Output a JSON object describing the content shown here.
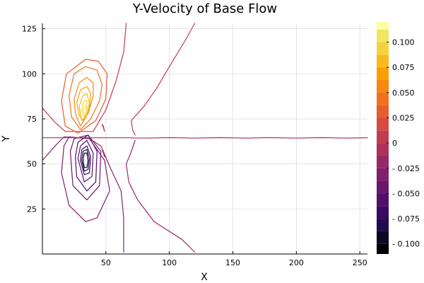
{
  "chart_data": {
    "type": "contour",
    "title": "Y-Velocity of Base Flow",
    "xlabel": "X",
    "ylabel": "Y",
    "x_ticks": [
      50,
      100,
      150,
      200,
      250
    ],
    "y_ticks": [
      25,
      50,
      75,
      100,
      125
    ],
    "xlim": [
      0,
      256
    ],
    "ylim": [
      0,
      128
    ],
    "grid": true,
    "legend": "right-colorbar",
    "colorbar": {
      "range": [
        -0.11,
        0.12
      ],
      "tick_values": [
        -0.1,
        -0.075,
        -0.05,
        -0.025,
        0,
        0.025,
        0.05,
        0.075,
        0.1
      ],
      "tick_labels": [
        "- 0.100",
        "- 0.075",
        "- 0.050",
        "- 0.025",
        "0",
        "0.025",
        "0.050",
        "0.075",
        "0.100"
      ],
      "bands": [
        {
          "from": -0.11,
          "to": -0.1,
          "color": "#000004"
        },
        {
          "from": -0.1,
          "to": -0.0875,
          "color": "#0c0826"
        },
        {
          "from": -0.0875,
          "to": -0.075,
          "color": "#230b4d"
        },
        {
          "from": -0.075,
          "to": -0.0625,
          "color": "#3a0963"
        },
        {
          "from": -0.0625,
          "to": -0.05,
          "color": "#520e6d"
        },
        {
          "from": -0.05,
          "to": -0.0375,
          "color": "#69166e"
        },
        {
          "from": -0.0375,
          "to": -0.025,
          "color": "#801f6c"
        },
        {
          "from": -0.025,
          "to": -0.0125,
          "color": "#982766"
        },
        {
          "from": -0.0125,
          "to": 0.0,
          "color": "#ae305c"
        },
        {
          "from": 0.0,
          "to": 0.0125,
          "color": "#c33b4f"
        },
        {
          "from": 0.0125,
          "to": 0.025,
          "color": "#d64b40"
        },
        {
          "from": 0.025,
          "to": 0.0375,
          "color": "#e65d2f"
        },
        {
          "from": 0.0375,
          "to": 0.05,
          "color": "#f1711f"
        },
        {
          "from": 0.05,
          "to": 0.0625,
          "color": "#f8870e"
        },
        {
          "from": 0.0625,
          "to": 0.075,
          "color": "#fc9f07"
        },
        {
          "from": 0.075,
          "to": 0.0875,
          "color": "#fbb91f"
        },
        {
          "from": 0.0875,
          "to": 0.1,
          "color": "#f5d23f"
        },
        {
          "from": 0.1,
          "to": 0.1125,
          "color": "#f2e661"
        },
        {
          "from": 0.1125,
          "to": 0.12,
          "color": "#fcffa4"
        }
      ]
    },
    "contours": [
      {
        "level": -0.1,
        "color": "#0c0826",
        "points": [
          [
            32,
            52
          ],
          [
            33,
            56
          ],
          [
            35,
            56
          ],
          [
            36,
            52
          ],
          [
            35,
            48
          ],
          [
            33,
            48
          ],
          [
            32,
            52
          ]
        ]
      },
      {
        "level": -0.09,
        "color": "#230b4d",
        "points": [
          [
            31,
            52
          ],
          [
            32,
            57
          ],
          [
            35,
            58
          ],
          [
            37,
            53
          ],
          [
            36,
            47
          ],
          [
            33,
            46
          ],
          [
            31,
            52
          ]
        ]
      },
      {
        "level": -0.075,
        "color": "#3a0963",
        "points": [
          [
            30,
            52
          ],
          [
            31,
            58
          ],
          [
            35,
            60
          ],
          [
            38,
            54
          ],
          [
            37,
            45
          ],
          [
            33,
            44
          ],
          [
            30,
            52
          ]
        ]
      },
      {
        "level": -0.06,
        "color": "#520e6d",
        "points": [
          [
            28,
            53
          ],
          [
            30,
            60
          ],
          [
            35,
            63
          ],
          [
            40,
            56
          ],
          [
            39,
            43
          ],
          [
            33,
            40
          ],
          [
            28,
            53
          ]
        ]
      },
      {
        "level": -0.045,
        "color": "#520e6d",
        "points": [
          [
            26,
            54
          ],
          [
            28,
            62
          ],
          [
            36,
            66
          ],
          [
            43,
            57
          ],
          [
            42,
            40
          ],
          [
            35,
            35
          ],
          [
            27,
            43
          ],
          [
            26,
            54
          ]
        ]
      },
      {
        "level": -0.03,
        "color": "#69166e",
        "points": [
          [
            22,
            57
          ],
          [
            25,
            64
          ],
          [
            36,
            66
          ],
          [
            46,
            57
          ],
          [
            45,
            38
          ],
          [
            35,
            30
          ],
          [
            24,
            38
          ],
          [
            22,
            57
          ]
        ]
      },
      {
        "level": -0.015,
        "color": "#801f6c",
        "points": [
          [
            17,
            60
          ],
          [
            21,
            65
          ],
          [
            37,
            64
          ],
          [
            49,
            52
          ],
          [
            53,
            35
          ],
          [
            43,
            20
          ],
          [
            34,
            18
          ],
          [
            21,
            27
          ],
          [
            15,
            45
          ],
          [
            17,
            60
          ]
        ]
      },
      {
        "level": -0.008,
        "color": "#8a226a",
        "points": [
          [
            0,
            52
          ],
          [
            10,
            60
          ],
          [
            17,
            65
          ],
          [
            37,
            64
          ],
          [
            46,
            60
          ],
          [
            54,
            47
          ],
          [
            62,
            35
          ],
          [
            64,
            20
          ],
          [
            64,
            1
          ]
        ]
      },
      {
        "level": -0.002,
        "color": "#982766",
        "points": [
          [
            73,
            63
          ],
          [
            69,
            55
          ],
          [
            66,
            50
          ],
          [
            68,
            40
          ],
          [
            75,
            30
          ],
          [
            88,
            18
          ],
          [
            110,
            8
          ],
          [
            120,
            1
          ]
        ]
      },
      {
        "level": -0.004,
        "color": "#982766",
        "points": [
          [
            47,
            58
          ],
          [
            48,
            56
          ],
          [
            49,
            54
          ],
          [
            48,
            57
          ],
          [
            47,
            58
          ]
        ]
      },
      {
        "level": 0.0,
        "color": "#ae305c",
        "points": [
          [
            0,
            64.5
          ],
          [
            40,
            64.5
          ],
          [
            65,
            64.5
          ],
          [
            80,
            64.3
          ],
          [
            100,
            64.6
          ],
          [
            120,
            64.3
          ],
          [
            140,
            64.6
          ],
          [
            160,
            64.3
          ],
          [
            180,
            64.6
          ],
          [
            200,
            64.3
          ],
          [
            220,
            64.6
          ],
          [
            240,
            64.3
          ],
          [
            256,
            64.5
          ]
        ]
      },
      {
        "level": 0.002,
        "color": "#c33b4f",
        "points": [
          [
            120,
            128
          ],
          [
            112,
            118
          ],
          [
            100,
            104
          ],
          [
            90,
            92
          ],
          [
            80,
            82
          ],
          [
            70,
            74
          ],
          [
            71,
            69
          ],
          [
            73,
            66
          ]
        ]
      },
      {
        "level": 0.004,
        "color": "#c33b4f",
        "points": [
          [
            47,
            72
          ],
          [
            48,
            70
          ],
          [
            49,
            68
          ],
          [
            48,
            71
          ],
          [
            47,
            72
          ]
        ]
      },
      {
        "level": 0.008,
        "color": "#c33b4f",
        "points": [
          [
            0,
            81
          ],
          [
            10,
            73
          ],
          [
            18,
            68
          ],
          [
            40,
            68
          ],
          [
            50,
            80
          ],
          [
            58,
            96
          ],
          [
            64,
            112
          ],
          [
            66,
            128
          ]
        ]
      },
      {
        "level": 0.015,
        "color": "#e65d2f",
        "points": [
          [
            15,
            85
          ],
          [
            19,
            100
          ],
          [
            34,
            108
          ],
          [
            44,
            107
          ],
          [
            51,
            100
          ],
          [
            50,
            86
          ],
          [
            42,
            74
          ],
          [
            28,
            67
          ],
          [
            18,
            71
          ],
          [
            15,
            85
          ]
        ]
      },
      {
        "level": 0.03,
        "color": "#f1711f",
        "points": [
          [
            21,
            88
          ],
          [
            25,
            100
          ],
          [
            34,
            104
          ],
          [
            43,
            102
          ],
          [
            47,
            94
          ],
          [
            45,
            85
          ],
          [
            38,
            75
          ],
          [
            30,
            69
          ],
          [
            23,
            76
          ],
          [
            21,
            88
          ]
        ]
      },
      {
        "level": 0.045,
        "color": "#f8870e",
        "points": [
          [
            25,
            86
          ],
          [
            29,
            95
          ],
          [
            35,
            98
          ],
          [
            40,
            95
          ],
          [
            40,
            88
          ],
          [
            36,
            78
          ],
          [
            30,
            71
          ],
          [
            26,
            78
          ],
          [
            25,
            86
          ]
        ]
      },
      {
        "level": 0.06,
        "color": "#fc9f07",
        "points": [
          [
            27,
            84
          ],
          [
            30,
            91
          ],
          [
            35,
            93
          ],
          [
            38,
            89
          ],
          [
            37,
            81
          ],
          [
            32,
            74
          ],
          [
            29,
            77
          ],
          [
            27,
            84
          ]
        ]
      },
      {
        "level": 0.075,
        "color": "#fbb91f",
        "points": [
          [
            29,
            82
          ],
          [
            32,
            88
          ],
          [
            35,
            89
          ],
          [
            37,
            84
          ],
          [
            35,
            77
          ],
          [
            31,
            74
          ],
          [
            29,
            82
          ]
        ]
      },
      {
        "level": 0.09,
        "color": "#f5d23f",
        "points": [
          [
            31,
            80
          ],
          [
            33,
            85
          ],
          [
            35,
            85
          ],
          [
            35,
            80
          ],
          [
            33,
            76
          ],
          [
            31,
            80
          ]
        ]
      },
      {
        "level": 0.1,
        "color": "#f2e661",
        "points": [
          [
            32,
            79
          ],
          [
            34,
            82
          ],
          [
            35,
            80
          ],
          [
            34,
            77
          ],
          [
            32,
            79
          ]
        ]
      }
    ]
  }
}
